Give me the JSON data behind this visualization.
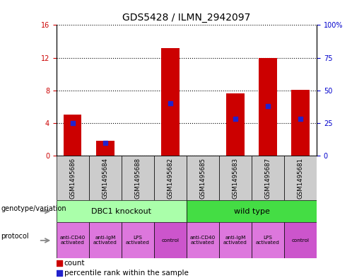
{
  "title": "GDS5428 / ILMN_2942097",
  "samples": [
    "GSM1495686",
    "GSM1495684",
    "GSM1495688",
    "GSM1495682",
    "GSM1495685",
    "GSM1495683",
    "GSM1495687",
    "GSM1495681"
  ],
  "counts": [
    5.0,
    1.8,
    0.05,
    13.2,
    0.05,
    7.6,
    12.0,
    8.1
  ],
  "percentile_ranks": [
    25.0,
    10.0,
    null,
    40.0,
    null,
    28.0,
    38.0,
    28.0
  ],
  "ylim_left": [
    0,
    16
  ],
  "ylim_right": [
    0,
    100
  ],
  "yticks_left": [
    0,
    4,
    8,
    12,
    16
  ],
  "yticks_right": [
    0,
    25,
    50,
    75,
    100
  ],
  "bar_color": "#cc0000",
  "dot_color": "#2222cc",
  "bar_width": 0.55,
  "genotype_groups": [
    {
      "label": "DBC1 knockout",
      "start": 0,
      "end": 4,
      "color": "#aaffaa"
    },
    {
      "label": "wild type",
      "start": 4,
      "end": 8,
      "color": "#44dd44"
    }
  ],
  "protocols": [
    {
      "label": "anti-CD40\nactivated",
      "idx": 0,
      "color": "#dd77dd"
    },
    {
      "label": "anti-IgM\nactivated",
      "idx": 1,
      "color": "#dd77dd"
    },
    {
      "label": "LPS\nactivated",
      "idx": 2,
      "color": "#dd77dd"
    },
    {
      "label": "control",
      "idx": 3,
      "color": "#cc55cc"
    },
    {
      "label": "anti-CD40\nactivated",
      "idx": 4,
      "color": "#dd77dd"
    },
    {
      "label": "anti-IgM\nactivated",
      "idx": 5,
      "color": "#dd77dd"
    },
    {
      "label": "LPS\nactivated",
      "idx": 6,
      "color": "#dd77dd"
    },
    {
      "label": "control",
      "idx": 7,
      "color": "#cc55cc"
    }
  ],
  "left_label_color": "#cc0000",
  "right_label_color": "#0000cc",
  "title_fontsize": 10,
  "bg_color": "#cccccc",
  "plot_bg_color": "#ffffff",
  "fig_width": 5.15,
  "fig_height": 3.93
}
